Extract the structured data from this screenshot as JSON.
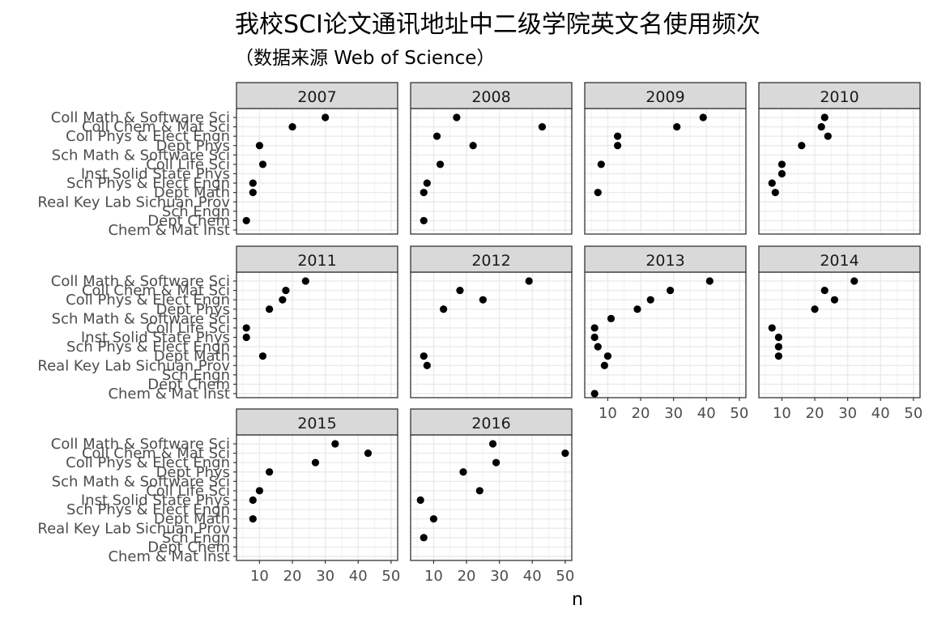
{
  "chart_data": {
    "type": "scatter",
    "title": "我校SCI论文通讯地址中二级学院英文名使用频次",
    "subtitle": "（数据来源 Web of Science）",
    "xlabel": "n",
    "ylabel": "",
    "xlim": [
      3,
      52
    ],
    "xticks": [
      10,
      20,
      30,
      40,
      50
    ],
    "grid": true,
    "categories": [
      "Coll Math & Software Sci",
      "Coll Chem & Mat Sci",
      "Coll Phys & Elect Engn",
      "Dept Phys",
      "Sch Math & Software Sci",
      "Coll Life Sci",
      "Inst Solid State Phys",
      "Sch Phys & Elect Engn",
      "Dept Math",
      "Real Key Lab Sichuan Prov",
      "Sch Engn",
      "Dept Chem",
      "Chem & Mat Inst"
    ],
    "panels": [
      {
        "year": "2007",
        "values": [
          30,
          20,
          null,
          10,
          null,
          11,
          null,
          8,
          8,
          null,
          null,
          6,
          null
        ]
      },
      {
        "year": "2008",
        "values": [
          17,
          43,
          11,
          22,
          null,
          12,
          null,
          8,
          7,
          null,
          null,
          7,
          null
        ]
      },
      {
        "year": "2009",
        "values": [
          39,
          31,
          13,
          13,
          null,
          8,
          null,
          null,
          7,
          null,
          null,
          null,
          null
        ]
      },
      {
        "year": "2010",
        "values": [
          23,
          22,
          24,
          16,
          null,
          10,
          10,
          7,
          8,
          null,
          null,
          null,
          null
        ]
      },
      {
        "year": "2011",
        "values": [
          24,
          18,
          17,
          13,
          null,
          6,
          6,
          null,
          11,
          null,
          null,
          null,
          null
        ]
      },
      {
        "year": "2012",
        "values": [
          39,
          18,
          25,
          13,
          null,
          null,
          null,
          null,
          7,
          8,
          null,
          null,
          null
        ]
      },
      {
        "year": "2013",
        "values": [
          41,
          29,
          23,
          19,
          11,
          6,
          6,
          7,
          10,
          9,
          null,
          null,
          6
        ]
      },
      {
        "year": "2014",
        "values": [
          32,
          23,
          26,
          20,
          null,
          7,
          9,
          9,
          9,
          null,
          null,
          null,
          null
        ]
      },
      {
        "year": "2015",
        "values": [
          33,
          43,
          27,
          13,
          null,
          10,
          8,
          null,
          8,
          null,
          null,
          null,
          null
        ]
      },
      {
        "year": "2016",
        "values": [
          28,
          50,
          29,
          19,
          null,
          24,
          6,
          null,
          10,
          null,
          7,
          null,
          null
        ]
      }
    ]
  }
}
